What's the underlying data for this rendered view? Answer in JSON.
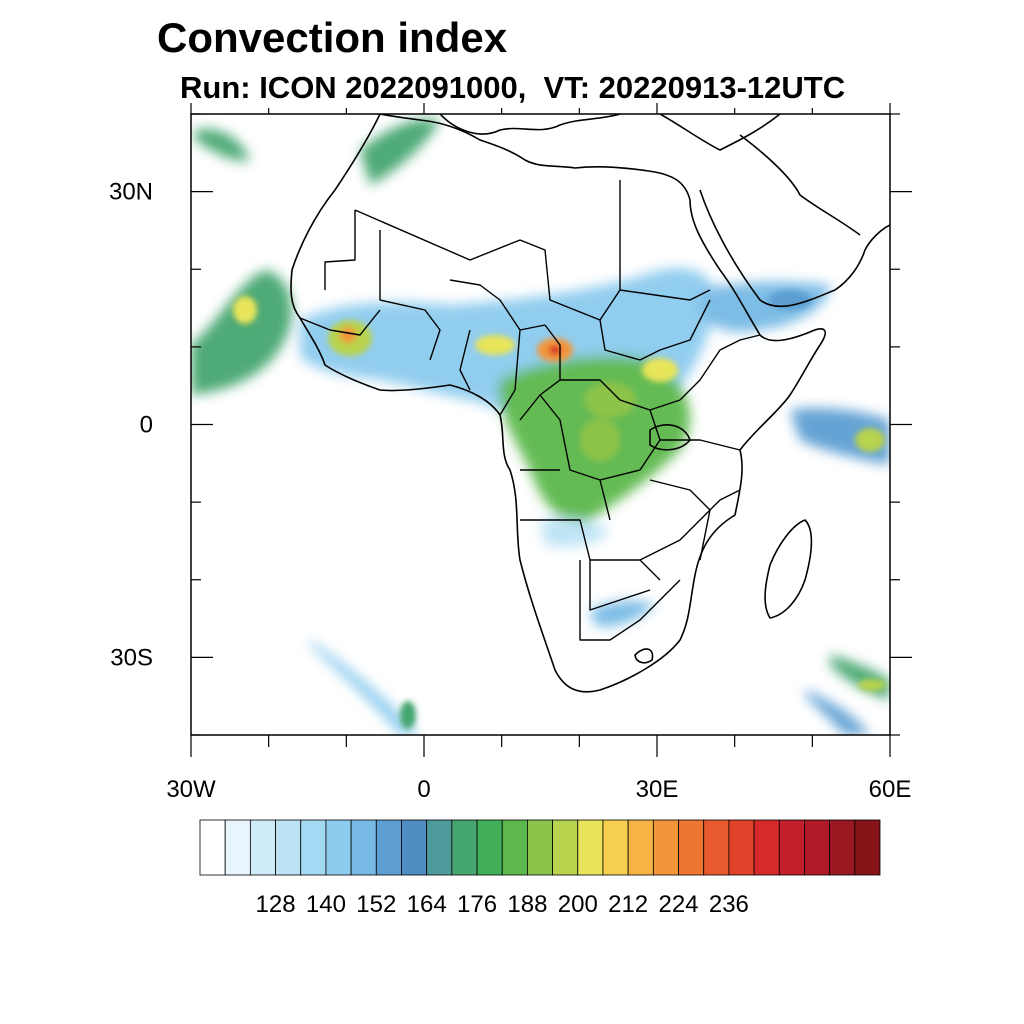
{
  "title": "Convection index",
  "subtitle": "Run: ICON 2022091000,  VT: 20220913-12UTC",
  "map": {
    "region": "Africa",
    "projection": "cylindrical equidistant",
    "lon_range": [
      -30,
      60
    ],
    "lat_range": [
      -40,
      40
    ],
    "lat_ticks": [
      {
        "value": 30,
        "label": "30N"
      },
      {
        "value": 0,
        "label": "0"
      },
      {
        "value": -30,
        "label": "30S"
      }
    ],
    "lon_ticks": [
      {
        "value": -30,
        "label": "30W"
      },
      {
        "value": 0,
        "label": "0"
      },
      {
        "value": 30,
        "label": "30E"
      },
      {
        "value": 60,
        "label": "60E"
      }
    ],
    "minor_tick_step_deg": 10,
    "outline_color": "#000000"
  },
  "colorbar": {
    "labels": [
      "128",
      "140",
      "152",
      "164",
      "176",
      "188",
      "200",
      "212",
      "224",
      "236"
    ],
    "colors": [
      "#ffffff",
      "#e8f5fc",
      "#d0ebf8",
      "#bce3f5",
      "#a4d9f3",
      "#8ccbee",
      "#76b9e4",
      "#5d9fd3",
      "#4f8dc2",
      "#4f9a9a",
      "#45a66f",
      "#42b05a",
      "#5cb84c",
      "#8cc34a",
      "#b8d34e",
      "#e8e55a",
      "#f6cf50",
      "#f6b444",
      "#f3963b",
      "#ee7632",
      "#e85a2d",
      "#e04229",
      "#d62a2a",
      "#c21f2b",
      "#ae1b27",
      "#9a1822",
      "#851317"
    ]
  },
  "chart_data": {
    "type": "heatmap",
    "title": "Convection index",
    "subtitle": "Run: ICON 2022091000,  VT: 20220913-12UTC",
    "xlim": [
      -30,
      60
    ],
    "ylim": [
      -40,
      40
    ],
    "xticks": [
      "30W",
      "0",
      "30E",
      "60E"
    ],
    "yticks": [
      "30N",
      "0",
      "30S"
    ],
    "colorbar_ticks": [
      128,
      140,
      152,
      164,
      176,
      188,
      200,
      212,
      224,
      236
    ],
    "regions": [
      {
        "lon": [
          -15,
          5
        ],
        "lat": [
          3,
          16
        ],
        "level": 176
      },
      {
        "lon": [
          5,
          20
        ],
        "lat": [
          4,
          13
        ],
        "level": 188
      },
      {
        "lon": [
          10,
          15
        ],
        "lat": [
          9,
          11
        ],
        "level": 212
      },
      {
        "lon": [
          15,
          18
        ],
        "lat": [
          8,
          11
        ],
        "level": 200
      },
      {
        "lon": [
          18,
          36
        ],
        "lat": [
          0,
          16
        ],
        "level": 176
      },
      {
        "lon": [
          22,
          30
        ],
        "lat": [
          -6,
          6
        ],
        "level": 188
      },
      {
        "lon": [
          28,
          34
        ],
        "lat": [
          -2,
          4
        ],
        "level": 176
      },
      {
        "lon": [
          36,
          45
        ],
        "lat": [
          12,
          18
        ],
        "level": 164
      },
      {
        "lon": [
          -29,
          -20
        ],
        "lat": [
          5,
          20
        ],
        "level": 164
      },
      {
        "lon": [
          -26,
          -22
        ],
        "lat": [
          13,
          17
        ],
        "level": 188
      },
      {
        "lon": [
          48,
          60
        ],
        "lat": [
          -5,
          2
        ],
        "level": 176
      },
      {
        "lon": [
          50,
          60
        ],
        "lat": [
          -36,
          -30
        ],
        "level": 164
      },
      {
        "lon": [
          48,
          56
        ],
        "lat": [
          -40,
          -34
        ],
        "level": 164
      },
      {
        "lon": [
          -12,
          -3
        ],
        "lat": [
          -40,
          -34
        ],
        "level": 152
      },
      {
        "lon": [
          -30,
          -22
        ],
        "lat": [
          35,
          40
        ],
        "level": 152
      },
      {
        "lon": [
          -5,
          2
        ],
        "lat": [
          33,
          40
        ],
        "level": 164
      },
      {
        "lon": [
          15,
          20
        ],
        "lat": [
          -15,
          -12
        ],
        "level": 140
      },
      {
        "lon": [
          28,
          32
        ],
        "lat": [
          -23,
          -20
        ],
        "level": 152
      }
    ]
  }
}
